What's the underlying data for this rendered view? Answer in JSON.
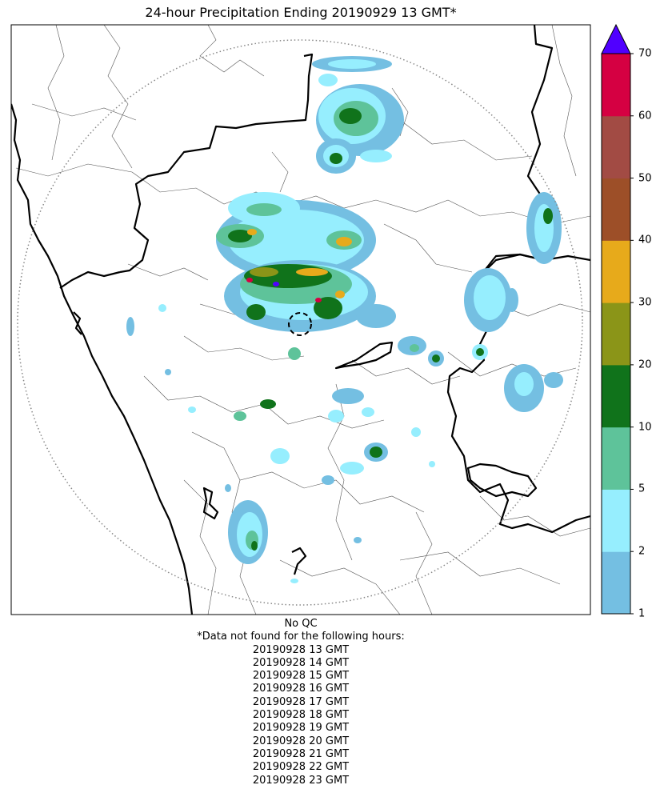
{
  "title": "24-hour Precipitation Ending 20190929 13 GMT*",
  "colorbar": {
    "ticks": [
      "1",
      "2",
      "5",
      "10",
      "20",
      "30",
      "40",
      "50",
      "60",
      "70"
    ],
    "bins": [
      {
        "from": 1,
        "to": 2,
        "color": "#74bfe2"
      },
      {
        "from": 2,
        "to": 5,
        "color": "#96eefe"
      },
      {
        "from": 5,
        "to": 10,
        "color": "#5ec39a"
      },
      {
        "from": 10,
        "to": 20,
        "color": "#10731b"
      },
      {
        "from": 20,
        "to": 30,
        "color": "#8b9518"
      },
      {
        "from": 30,
        "to": 40,
        "color": "#e7aa1b"
      },
      {
        "from": 40,
        "to": 50,
        "color": "#9d4f28"
      },
      {
        "from": 50,
        "to": 60,
        "color": "#a24b44"
      },
      {
        "from": 60,
        "to": 70,
        "color": "#d50042"
      }
    ],
    "extend_color": "#5000ff"
  },
  "notes": {
    "qc": "No QC",
    "missing_header": "*Data not found for the following hours:",
    "missing_hours": [
      "20190928 13 GMT",
      "20190928 14 GMT",
      "20190928 15 GMT",
      "20190928 16 GMT",
      "20190928 17 GMT",
      "20190928 18 GMT",
      "20190928 19 GMT",
      "20190928 20 GMT",
      "20190928 21 GMT",
      "20190928 22 GMT",
      "20190928 23 GMT"
    ]
  }
}
